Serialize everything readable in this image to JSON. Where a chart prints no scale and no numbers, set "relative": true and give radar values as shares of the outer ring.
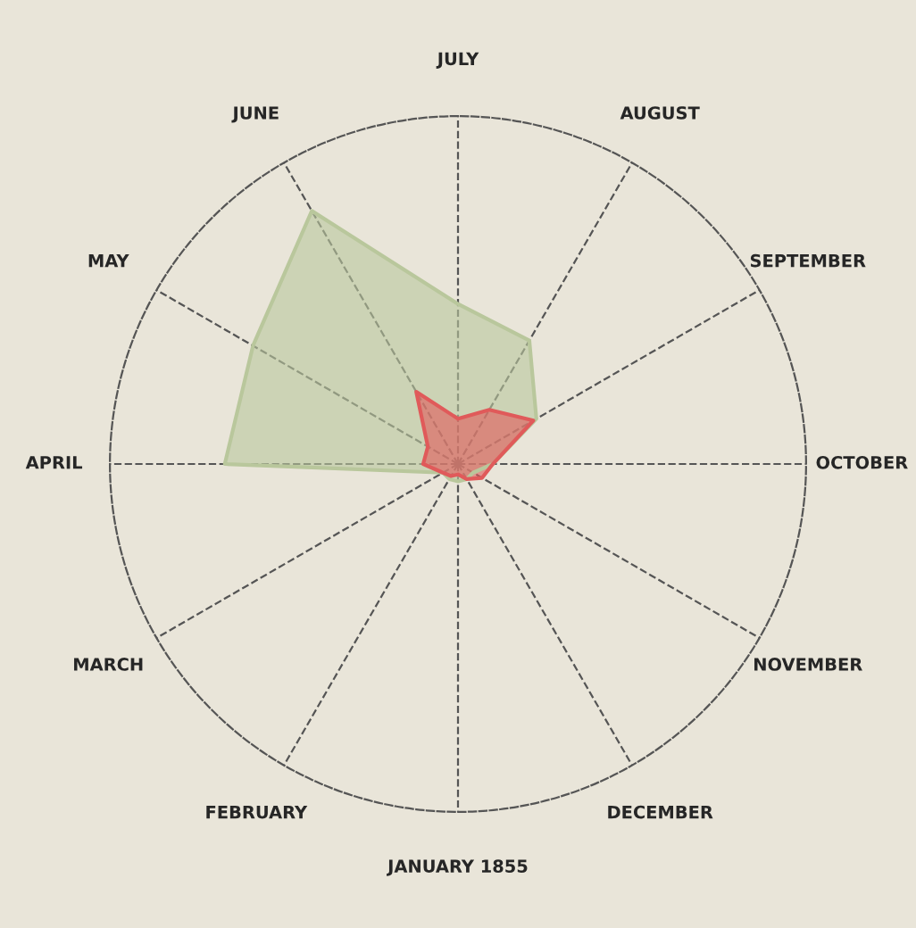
{
  "chart_data": {
    "type": "radar",
    "relative": true,
    "grid": true,
    "line_style": "solid",
    "marker": "none",
    "categories": [
      "JULY",
      "AUGUST",
      "SEPTEMBER",
      "OCTOBER",
      "NOVEMBER",
      "DECEMBER",
      "JANUARY 1855",
      "FEBRUARY",
      "MARCH",
      "APRIL",
      "MAY",
      "JUNE"
    ],
    "series": [
      {
        "color": "#b9c79c",
        "values": [
          0.46,
          0.41,
          0.26,
          0.1,
          0.05,
          0.05,
          0.05,
          0.05,
          0.05,
          0.67,
          0.68,
          0.84
        ]
      },
      {
        "color": "#e05a5a",
        "values": [
          0.13,
          0.18,
          0.25,
          0.1,
          0.08,
          0.05,
          0.03,
          0.04,
          0.05,
          0.1,
          0.1,
          0.24
        ]
      }
    ]
  }
}
